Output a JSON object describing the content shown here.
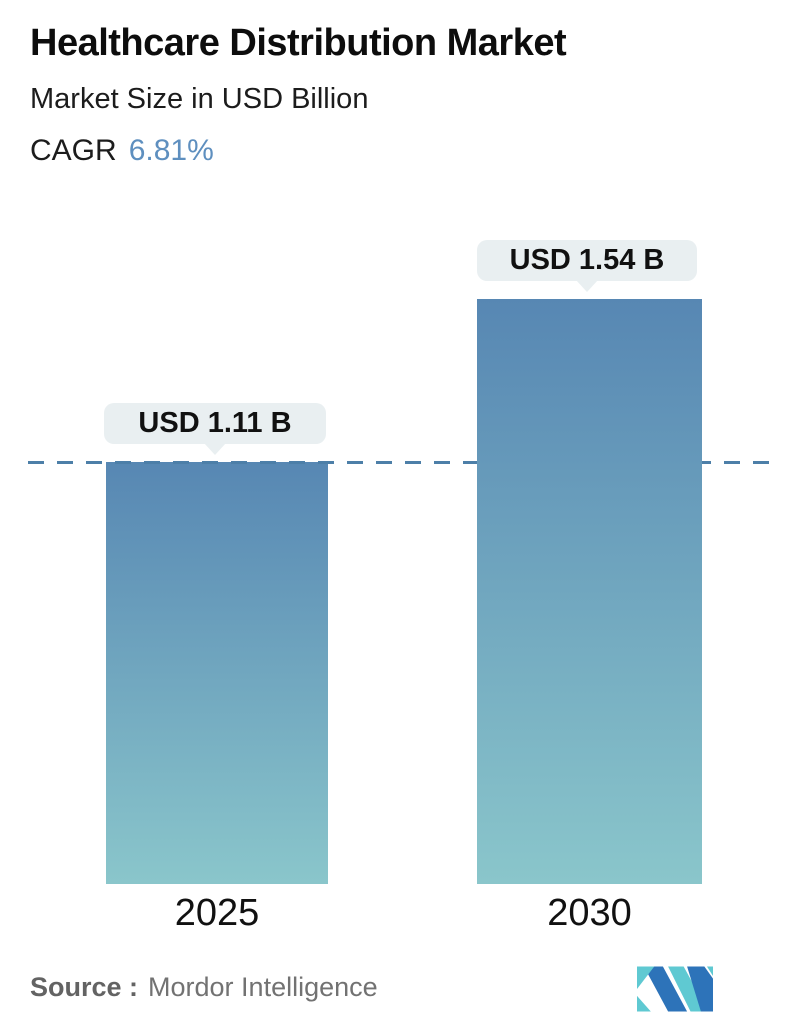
{
  "header": {
    "title": "Healthcare Distribution Market",
    "subtitle": "Market Size in USD Billion",
    "cagr_label": "CAGR",
    "cagr_value": "6.81%"
  },
  "chart_data": {
    "type": "bar",
    "categories": [
      "2025",
      "2030"
    ],
    "values": [
      1.11,
      1.54
    ],
    "value_labels": [
      "USD 1.11 B",
      "USD 1.54 B"
    ],
    "title": "Healthcare Distribution Market",
    "ylabel": "Market Size in USD Billion",
    "ylim": [
      0,
      1.6
    ],
    "reference_line_value": 1.11,
    "legend": "none",
    "grid": "off",
    "bar_gradient_top": "#5787b3",
    "bar_gradient_bottom": "#8ac6cb",
    "reference_line_color": "#4d7fa8",
    "bubble_bg": "#e9eff1"
  },
  "footer": {
    "source_label": "Source :",
    "source_value": "Mordor Intelligence",
    "logo_teal": "#5fc9d2",
    "logo_blue": "#2d73b9"
  },
  "colors": {
    "cagr_accent": "#5e8fbf",
    "text_dark": "#111111",
    "text_gray": "#6e6e6e"
  }
}
